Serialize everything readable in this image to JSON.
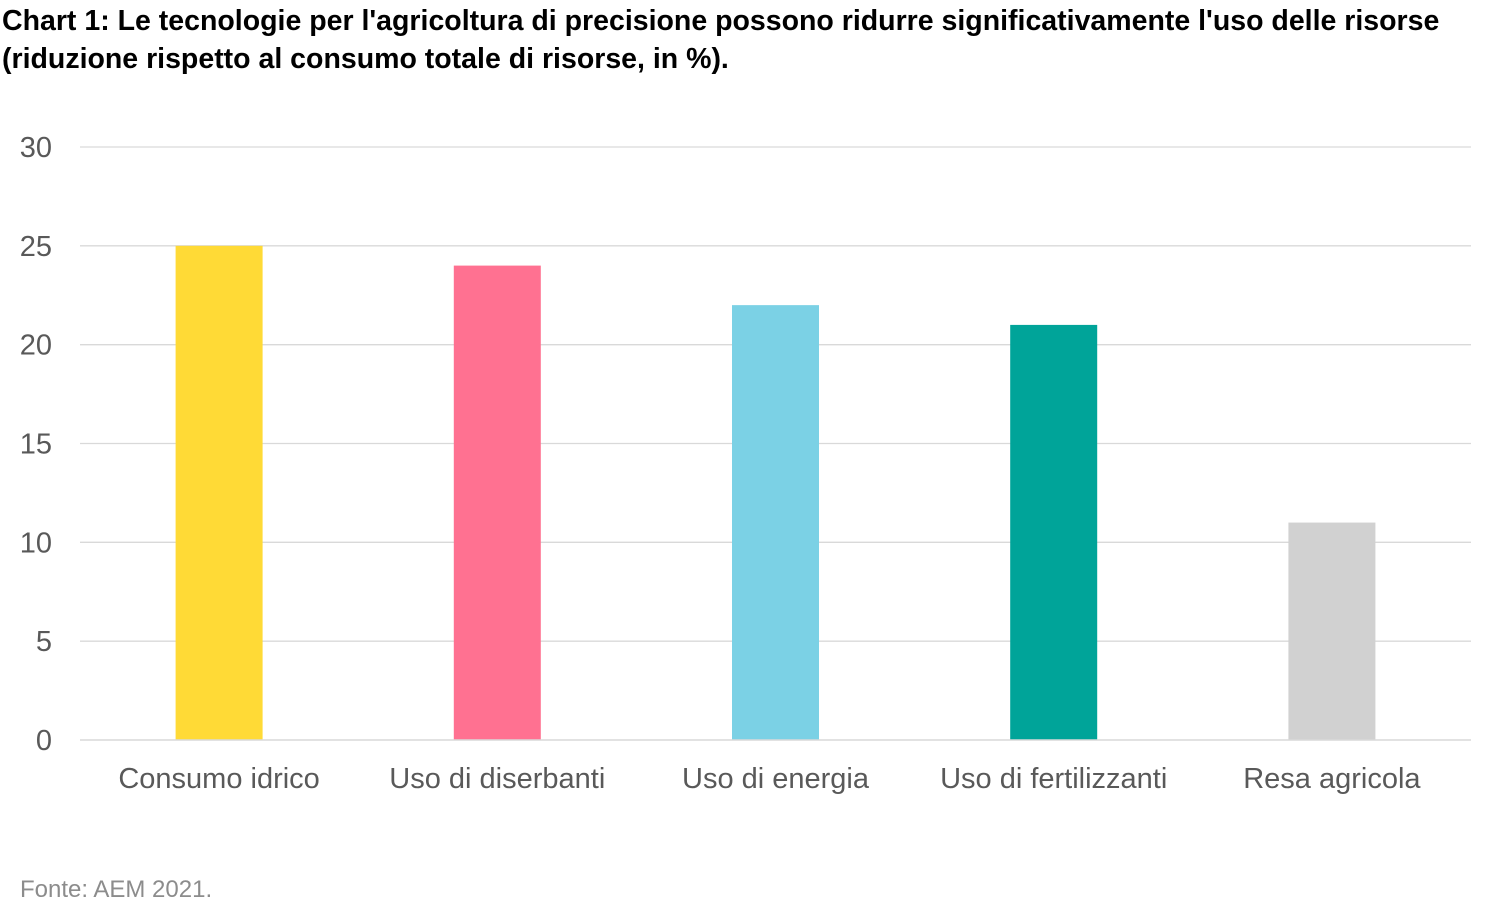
{
  "chart_data": {
    "type": "bar",
    "title": "Chart 1: Le tecnologie per l'agricoltura di precisione possono ridurre significativamente l'uso delle risorse (riduzione rispetto al consumo totale di risorse, in %).",
    "categories": [
      "Consumo idrico",
      "Uso di diserbanti",
      "Uso di energia",
      "Uso di fertilizzanti",
      "Resa agricola"
    ],
    "values": [
      25,
      24,
      22,
      21,
      11
    ],
    "colors": [
      "#ffda36",
      "#ff7191",
      "#7bd1e5",
      "#00a499",
      "#d1d1d1"
    ],
    "xlabel": "",
    "ylabel": "",
    "ylim": [
      0,
      30
    ],
    "yticks": [
      0,
      5,
      10,
      15,
      20,
      25,
      30
    ],
    "grid": true,
    "legend": "none"
  },
  "source": "Fonte: AEM 2021."
}
